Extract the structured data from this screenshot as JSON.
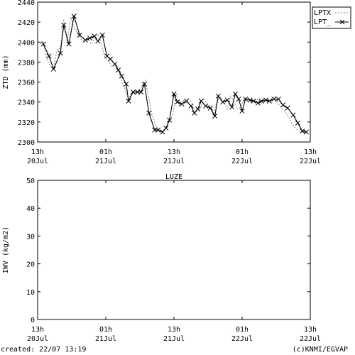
{
  "chart_data": [
    {
      "type": "line",
      "ylabel": "ZTD (mm)",
      "ylim": [
        2300,
        2440
      ],
      "yticks": [
        2300,
        2320,
        2340,
        2360,
        2380,
        2400,
        2420,
        2440
      ],
      "xrange_hours": [
        0,
        48
      ],
      "xticks": [
        {
          "hour": 0,
          "time": "13h",
          "date": "20Jul"
        },
        {
          "hour": 12,
          "time": "01h",
          "date": "21Jul"
        },
        {
          "hour": 24,
          "time": "13h",
          "date": "21Jul"
        },
        {
          "hour": 36,
          "time": "01h",
          "date": "22Jul"
        },
        {
          "hour": 48,
          "time": "13h",
          "date": "22Jul"
        }
      ],
      "legend_position": "top-right, outside plot",
      "series": [
        {
          "name": "LPTX",
          "style": "dotted",
          "x": [
            0.4,
            1.0,
            1.6,
            2.2,
            2.8,
            3.4,
            4.0,
            4.6,
            5.2,
            5.8,
            6.4,
            7.0,
            7.6,
            8.2,
            8.8,
            9.4,
            10.0,
            10.6,
            11.2,
            11.8,
            12.4,
            13.0,
            13.6,
            14.2,
            14.8,
            15.4,
            16.0,
            16.6,
            17.2,
            17.8,
            18.4,
            19.0,
            19.6,
            20.2,
            20.8,
            21.4,
            22.0,
            22.6,
            23.2,
            23.8,
            24.4,
            25.0,
            25.6,
            26.2,
            26.8,
            27.4,
            28.0,
            28.6,
            29.2,
            29.8,
            30.4,
            31.0,
            31.6,
            32.2,
            32.8,
            33.4,
            34.0,
            34.6,
            35.2,
            35.8,
            36.4,
            37.0,
            37.6,
            38.2,
            38.8,
            39.4,
            40.0,
            40.6,
            41.2,
            41.8,
            42.4,
            43.0,
            43.6,
            44.2,
            44.8,
            45.4,
            46.0,
            46.6,
            47.2
          ],
          "values": [
            2398,
            2401,
            2383,
            2376,
            2373,
            2392,
            2394,
            2423,
            2399,
            2425,
            2415,
            2409,
            2403,
            2400,
            2405,
            2398,
            2403,
            2408,
            2399,
            2385,
            2382,
            2376,
            2378,
            2375,
            2360,
            2353,
            2343,
            2350,
            2349,
            2352,
            2356,
            2362,
            2343,
            2326,
            2317,
            2312,
            2310,
            2314,
            2320,
            2327,
            2349,
            2336,
            2342,
            2339,
            2343,
            2335,
            2331,
            2333,
            2344,
            2338,
            2336,
            2329,
            2341,
            2345,
            2340,
            2333,
            2346,
            2340,
            2333,
            2335,
            2344,
            2343,
            2340,
            2341,
            2343,
            2339,
            2343,
            2340,
            2343,
            2346,
            2338,
            2334,
            2330,
            2325,
            2318,
            2314,
            2311,
            2310,
            2309
          ]
        },
        {
          "name": "LPT_",
          "style": "solid with x markers",
          "x": [
            1.0,
            2.0,
            2.8,
            4.0,
            4.6,
            5.5,
            6.4,
            7.4,
            8.4,
            9.2,
            10.0,
            10.6,
            11.4,
            12.2,
            12.8,
            13.6,
            14.2,
            14.8,
            15.6,
            16.0,
            16.8,
            17.6,
            18.2,
            18.8,
            19.6,
            20.6,
            21.2,
            22.0,
            22.6,
            23.2,
            24.0,
            24.6,
            25.4,
            26.2,
            27.0,
            27.6,
            28.2,
            28.8,
            29.6,
            30.4,
            31.2,
            31.8,
            32.6,
            33.4,
            34.2,
            34.8,
            35.4,
            36.0,
            36.6,
            37.4,
            38.0,
            38.8,
            39.4,
            40.2,
            40.8,
            41.6,
            42.4,
            43.2,
            44.0,
            45.0,
            45.8,
            46.6,
            47.3
          ],
          "values": [
            2398,
            2386,
            2373,
            2389,
            2417,
            2398,
            2426,
            2407,
            2402,
            2404,
            2406,
            2401,
            2407,
            2386,
            2383,
            2378,
            2372,
            2366,
            2358,
            2341,
            2350,
            2350,
            2350,
            2358,
            2329,
            2312,
            2312,
            2310,
            2314,
            2322,
            2348,
            2340,
            2338,
            2341,
            2336,
            2329,
            2333,
            2341,
            2336,
            2334,
            2326,
            2346,
            2340,
            2342,
            2335,
            2348,
            2343,
            2331,
            2343,
            2342,
            2341,
            2339,
            2341,
            2342,
            2341,
            2343,
            2343,
            2337,
            2334,
            2327,
            2319,
            2311,
            2310
          ]
        }
      ]
    },
    {
      "type": "line",
      "title": "LUZE",
      "ylabel": "IWV (kg/m2)",
      "ylim": [
        0,
        50
      ],
      "yticks": [
        0,
        10,
        20,
        30,
        40,
        50
      ],
      "xrange_hours": [
        0,
        48
      ],
      "xticks": [
        {
          "hour": 0,
          "time": "13h",
          "date": "20Jul"
        },
        {
          "hour": 12,
          "time": "01h",
          "date": "21Jul"
        },
        {
          "hour": 24,
          "time": "13h",
          "date": "21Jul"
        },
        {
          "hour": 36,
          "time": "01h",
          "date": "22Jul"
        },
        {
          "hour": 48,
          "time": "13h",
          "date": "22Jul"
        }
      ],
      "series": []
    }
  ],
  "footer": {
    "created": "created: 22/07 13:19",
    "credit": "(c)KNMI/EGVAP"
  }
}
